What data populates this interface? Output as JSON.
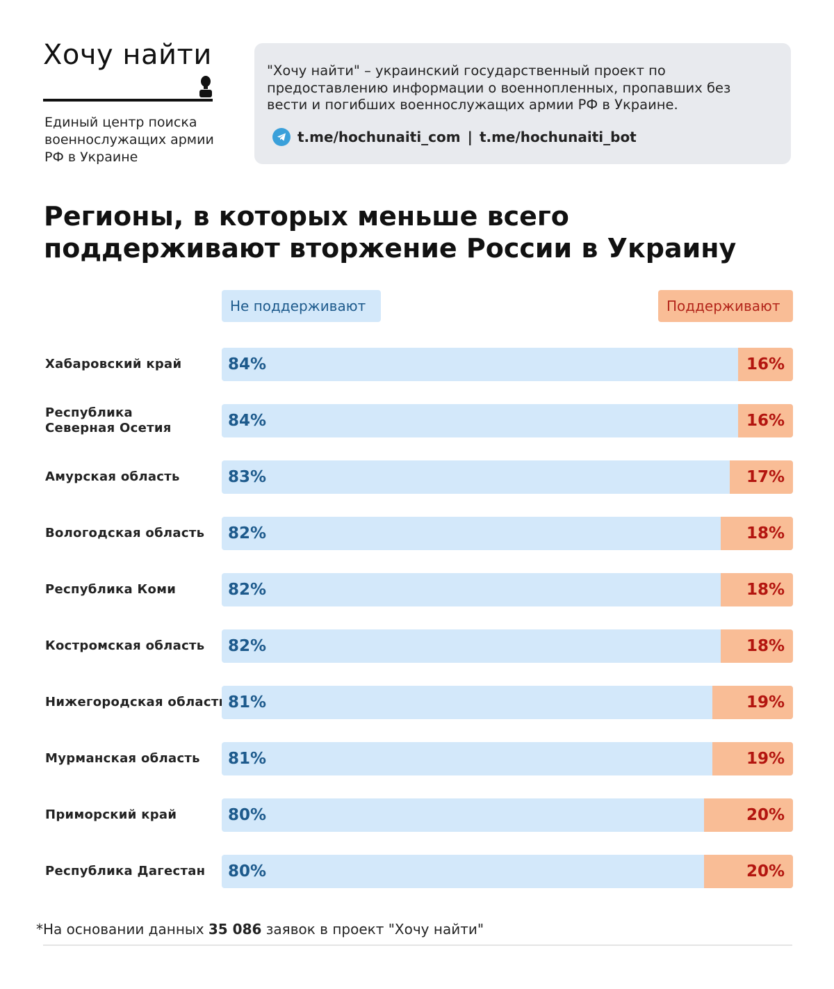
{
  "logo": {
    "title": "Хочу найти",
    "subtitle": "Единый центр поиска военнослужащих армии РФ в Украине"
  },
  "info": {
    "text": "\"Хочу найти\" – украинский государственный проект по предоставлению информации о военнопленных, пропавших без вести и погибших военнослужащих армии РФ в Украине.",
    "link1": "t.me/hochunaiti_com",
    "separator": "|",
    "link2": "t.me/hochunaiti_bot",
    "icon": "telegram-icon"
  },
  "chart_data": {
    "type": "bar",
    "stacked": true,
    "orientation": "horizontal",
    "title": "Регионы, в которых меньше всего поддерживают вторжение России в Украину",
    "legend": [
      "Не поддерживают",
      "Поддерживают"
    ],
    "colors": {
      "not_support": "#d3e8fa",
      "support": "#f9bd96",
      "not_support_text": "#1d5a8c",
      "support_text": "#b3150f"
    },
    "categories": [
      "Хабаровский край",
      "Республика Северная Осетия",
      "Амурская область",
      "Вологодская область",
      "Республика Коми",
      "Костромская область",
      "Нижегородская область",
      "Мурманская область",
      "Приморский край",
      "Республика Дагестан"
    ],
    "series": [
      {
        "name": "Не поддерживают",
        "values": [
          84,
          84,
          83,
          82,
          82,
          82,
          81,
          81,
          80,
          80
        ]
      },
      {
        "name": "Поддерживают",
        "values": [
          16,
          16,
          17,
          18,
          18,
          18,
          19,
          19,
          20,
          20
        ]
      }
    ],
    "unit": "%"
  },
  "footnote": {
    "prefix": "*На основании данных ",
    "count": "35 086",
    "suffix": " заявок в проект \"Хочу найти\""
  }
}
